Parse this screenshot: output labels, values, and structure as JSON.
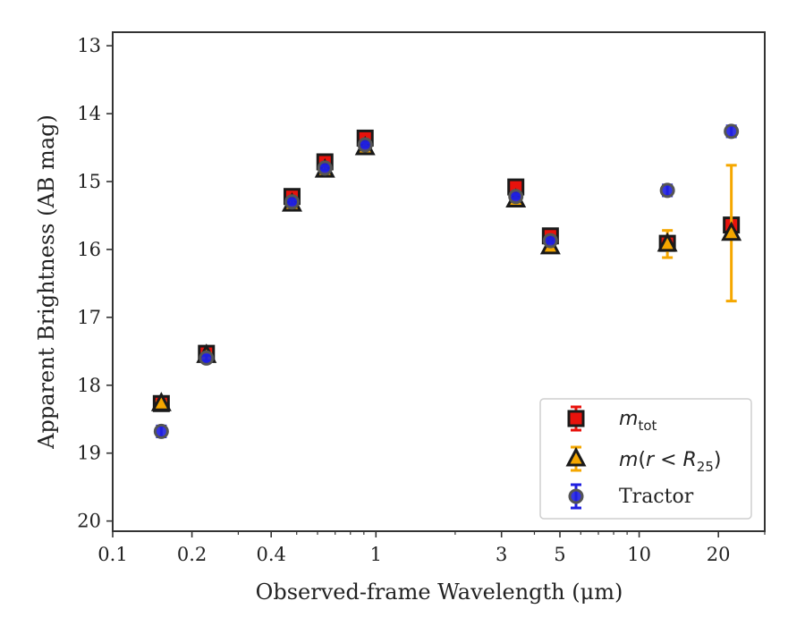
{
  "chart_data": {
    "type": "scatter",
    "xlabel": "Observed-frame Wavelength (μm)",
    "ylabel": "Apparent Brightness (AB mag)",
    "x_scale": "log",
    "xlim": [
      0.1,
      30
    ],
    "ylim": [
      20.15,
      12.8
    ],
    "y_inverted": true,
    "x_ticks": [
      {
        "value": 0.1,
        "label": "0.1"
      },
      {
        "value": 0.2,
        "label": "0.2"
      },
      {
        "value": 0.4,
        "label": "0.4"
      },
      {
        "value": 1,
        "label": "1"
      },
      {
        "value": 3,
        "label": "3"
      },
      {
        "value": 5,
        "label": "5"
      },
      {
        "value": 10,
        "label": "10"
      },
      {
        "value": 20,
        "label": "20"
      }
    ],
    "y_ticks": [
      {
        "value": 13,
        "label": "13"
      },
      {
        "value": 14,
        "label": "14"
      },
      {
        "value": 15,
        "label": "15"
      },
      {
        "value": 16,
        "label": "16"
      },
      {
        "value": 17,
        "label": "17"
      },
      {
        "value": 18,
        "label": "18"
      },
      {
        "value": 19,
        "label": "19"
      },
      {
        "value": 20,
        "label": "20"
      }
    ],
    "grid": false,
    "legend_position": "lower-right",
    "series": [
      {
        "id": "mtot",
        "name": "m_tot",
        "marker": "square",
        "color": "#e8120c",
        "edge": "#1a1a1a",
        "points": [
          {
            "x": 0.153,
            "y": 18.27,
            "err": 0.03
          },
          {
            "x": 0.227,
            "y": 17.53,
            "err": 0.03
          },
          {
            "x": 0.48,
            "y": 15.22,
            "err": 0.02
          },
          {
            "x": 0.64,
            "y": 14.71,
            "err": 0.02
          },
          {
            "x": 0.91,
            "y": 14.36,
            "err": 0.02
          },
          {
            "x": 3.4,
            "y": 15.08,
            "err": 0.02
          },
          {
            "x": 4.6,
            "y": 15.8,
            "err": 0.02
          },
          {
            "x": 12.8,
            "y": 15.91,
            "err": 0.06
          },
          {
            "x": 22.4,
            "y": 15.64,
            "err": 0.1
          }
        ]
      },
      {
        "id": "mr25",
        "name": "m(r < R25)",
        "marker": "triangle",
        "color": "#f5a700",
        "edge": "#1a1a1a",
        "points": [
          {
            "x": 0.153,
            "y": 18.27,
            "err": 0.03
          },
          {
            "x": 0.227,
            "y": 17.56,
            "err": 0.03
          },
          {
            "x": 0.48,
            "y": 15.33,
            "err": 0.02
          },
          {
            "x": 0.64,
            "y": 14.83,
            "err": 0.02
          },
          {
            "x": 0.91,
            "y": 14.5,
            "err": 0.02
          },
          {
            "x": 3.4,
            "y": 15.27,
            "err": 0.02
          },
          {
            "x": 4.6,
            "y": 15.96,
            "err": 0.02
          },
          {
            "x": 12.8,
            "y": 15.92,
            "err": 0.2
          },
          {
            "x": 22.4,
            "y": 15.76,
            "err": 1.0
          }
        ]
      },
      {
        "id": "tractor",
        "name": "Tractor",
        "marker": "circle",
        "color": "#1f1fe0",
        "edge": "#555555",
        "points": [
          {
            "x": 0.153,
            "y": 18.68,
            "err": 0.08
          },
          {
            "x": 0.227,
            "y": 17.6,
            "err": 0.04
          },
          {
            "x": 0.48,
            "y": 15.3,
            "err": 0.03
          },
          {
            "x": 0.64,
            "y": 14.8,
            "err": 0.03
          },
          {
            "x": 0.91,
            "y": 14.46,
            "err": 0.03
          },
          {
            "x": 3.4,
            "y": 15.22,
            "err": 0.03
          },
          {
            "x": 4.6,
            "y": 15.87,
            "err": 0.03
          },
          {
            "x": 12.8,
            "y": 15.13,
            "err": 0.08
          },
          {
            "x": 22.4,
            "y": 14.26,
            "err": 0.08
          }
        ]
      }
    ]
  },
  "legend": {
    "mtot_main": "m",
    "mtot_sub": "tot",
    "mr25_m": "m",
    "mr25_paren_open": "(",
    "mr25_r": "r",
    "mr25_lt": " < ",
    "mr25_R": "R",
    "mr25_sub": "25",
    "mr25_paren_close": ")",
    "tractor": "Tractor"
  }
}
